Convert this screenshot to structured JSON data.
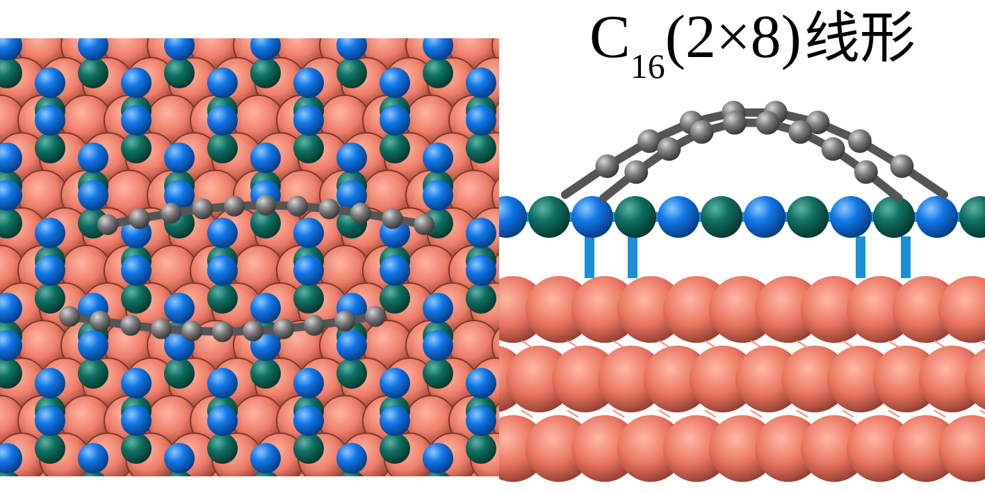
{
  "figure": {
    "caption": {
      "element": "C",
      "subscript": "16",
      "supercell": "(2×8)",
      "shape": "线形"
    },
    "colors": {
      "substrate": "#f07f6a",
      "blue_atom": "#1177e8",
      "teal_atom": "#0f6f62",
      "carbon_atom": "#7a7a7a",
      "background": "#ffffff"
    },
    "panels": [
      "top-view",
      "side-view"
    ]
  }
}
